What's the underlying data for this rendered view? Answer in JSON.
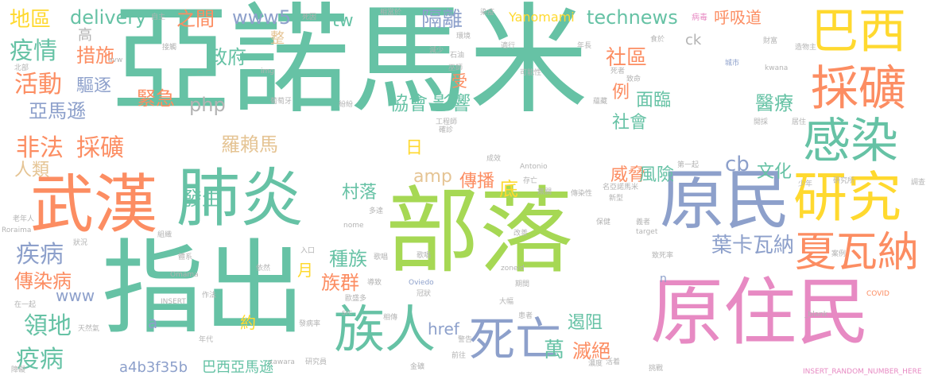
{
  "palette": {
    "teal": "#66c2a5",
    "orange": "#fc8d62",
    "blue": "#8da0cb",
    "pink": "#e78ac3",
    "lime": "#a6d854",
    "yellow": "#ffd92f",
    "tan": "#e5c494",
    "gray": "#b3b3b3"
  },
  "words": [
    {
      "text": "亞諾馬米",
      "color": "teal",
      "weight": 100
    },
    {
      "text": "部落",
      "color": "lime",
      "weight": 70
    },
    {
      "text": "指出",
      "color": "teal",
      "weight": 68
    },
    {
      "text": "原住民",
      "color": "pink",
      "weight": 52
    },
    {
      "text": "武漢",
      "color": "orange",
      "weight": 44
    },
    {
      "text": "肺炎",
      "color": "teal",
      "weight": 44
    },
    {
      "text": "原民",
      "color": "blue",
      "weight": 42
    },
    {
      "text": "研究",
      "color": "yellow",
      "weight": 36
    },
    {
      "text": "族人",
      "color": "teal",
      "weight": 34
    },
    {
      "text": "死亡",
      "color": "blue",
      "weight": 34
    },
    {
      "text": "巴西",
      "color": "yellow",
      "weight": 32
    },
    {
      "text": "採礦",
      "color": "orange",
      "weight": 32
    },
    {
      "text": "感染",
      "color": "teal",
      "weight": 32
    },
    {
      "text": "夏瓦納",
      "color": "orange",
      "weight": 28
    },
    {
      "text": "葉卡瓦納",
      "color": "blue",
      "weight": 18
    },
    {
      "text": "地區",
      "color": "yellow",
      "weight": 16
    },
    {
      "text": "delivery",
      "color": "teal",
      "weight": 16
    },
    {
      "text": "之間",
      "color": "orange",
      "weight": 16
    },
    {
      "text": "www5",
      "color": "blue",
      "weight": 16
    },
    {
      "text": "隔離",
      "color": "blue",
      "weight": 16
    },
    {
      "text": "technews",
      "color": "teal",
      "weight": 16
    },
    {
      "text": "呼吸道",
      "color": "orange",
      "weight": 14
    },
    {
      "text": "tw",
      "color": "teal",
      "weight": 14
    },
    {
      "text": "疫情",
      "color": "teal",
      "weight": 18
    },
    {
      "text": "措施",
      "color": "orange",
      "weight": 16
    },
    {
      "text": "政府",
      "color": "teal",
      "weight": 16
    },
    {
      "text": "社區",
      "color": "orange",
      "weight": 16
    },
    {
      "text": "活動",
      "color": "orange",
      "weight": 18
    },
    {
      "text": "驅逐",
      "color": "blue",
      "weight": 14
    },
    {
      "text": "亞馬遜",
      "color": "blue",
      "weight": 16
    },
    {
      "text": "緊急",
      "color": "orange",
      "weight": 16
    },
    {
      "text": "php",
      "color": "gray",
      "weight": 16
    },
    {
      "text": "協會",
      "color": "teal",
      "weight": 16
    },
    {
      "text": "影響",
      "color": "teal",
      "weight": 16
    },
    {
      "text": "例",
      "color": "orange",
      "weight": 14
    },
    {
      "text": "面臨",
      "color": "teal",
      "weight": 14
    },
    {
      "text": "醫療",
      "color": "teal",
      "weight": 16
    },
    {
      "text": "受",
      "color": "orange",
      "weight": 14
    },
    {
      "text": "社會",
      "color": "teal",
      "weight": 14
    },
    {
      "text": "非法",
      "color": "orange",
      "weight": 18
    },
    {
      "text": "採礦",
      "color": "orange",
      "weight": 18
    },
    {
      "text": "羅賴馬",
      "color": "tan",
      "weight": 16
    },
    {
      "text": "日",
      "color": "yellow",
      "weight": 14
    },
    {
      "text": "人類",
      "color": "tan",
      "weight": 14
    },
    {
      "text": "cb",
      "color": "blue",
      "weight": 16
    },
    {
      "text": "文化",
      "color": "teal",
      "weight": 14
    },
    {
      "text": "威脅",
      "color": "orange",
      "weight": 14
    },
    {
      "text": "風險",
      "color": "teal",
      "weight": 16
    },
    {
      "text": "amp",
      "color": "tan",
      "weight": 16
    },
    {
      "text": "傳播",
      "color": "orange",
      "weight": 16
    },
    {
      "text": "底",
      "color": "yellow",
      "weight": 16
    },
    {
      "text": "發生",
      "color": "teal",
      "weight": 16
    },
    {
      "text": "村落",
      "color": "teal",
      "weight": 16
    },
    {
      "text": "疾病",
      "color": "blue",
      "weight": 18
    },
    {
      "text": "種族",
      "color": "teal",
      "weight": 16
    },
    {
      "text": "族群",
      "color": "orange",
      "weight": 16
    },
    {
      "text": "傳染病",
      "color": "orange",
      "weight": 16
    },
    {
      "text": "月",
      "color": "yellow",
      "weight": 14
    },
    {
      "text": "www",
      "color": "blue",
      "weight": 16
    },
    {
      "text": "領地",
      "color": "teal",
      "weight": 18
    },
    {
      "text": "約",
      "color": "yellow",
      "weight": 14
    },
    {
      "text": "a",
      "color": "blue",
      "weight": 14
    },
    {
      "text": "遏阻",
      "color": "teal",
      "weight": 16
    },
    {
      "text": "萬",
      "color": "teal",
      "weight": 16
    },
    {
      "text": "滅絕",
      "color": "orange",
      "weight": 16
    },
    {
      "text": "href",
      "color": "blue",
      "weight": 14
    },
    {
      "text": "疫病",
      "color": "teal",
      "weight": 18
    },
    {
      "text": "a4b3f35b",
      "color": "blue",
      "weight": 14
    },
    {
      "text": "巴西亞馬遜",
      "color": "teal",
      "weight": 14
    },
    {
      "text": "Yanomami",
      "color": "yellow",
      "weight": 12
    },
    {
      "text": "高",
      "color": "gray",
      "weight": 14
    },
    {
      "text": "ck",
      "color": "gray",
      "weight": 14
    },
    {
      "text": "n",
      "color": "blue",
      "weight": 12
    },
    {
      "text": "整",
      "color": "tan",
      "weight": 14
    },
    {
      "text": "INSERT_RANDOM_NUMBER_HERE",
      "color": "pink",
      "weight": 10
    },
    {
      "text": "病毒",
      "color": "pink",
      "weight": 8
    },
    {
      "text": "財富",
      "color": "gray",
      "weight": 8
    },
    {
      "text": "造物主",
      "color": "gray",
      "weight": 8
    },
    {
      "text": "城市",
      "color": "blue",
      "weight": 8
    },
    {
      "text": "kwana",
      "color": "gray",
      "weight": 8
    },
    {
      "text": "死者",
      "color": "gray",
      "weight": 8
    },
    {
      "text": "致命",
      "color": "gray",
      "weight": 8
    },
    {
      "text": "食於",
      "color": "gray",
      "weight": 8
    },
    {
      "text": "年長",
      "color": "gray",
      "weight": 8
    },
    {
      "text": "巫師",
      "color": "gray",
      "weight": 8
    },
    {
      "text": "石油",
      "color": "gray",
      "weight": 8
    },
    {
      "text": "可能性",
      "color": "gray",
      "weight": 8
    },
    {
      "text": "蘊藏",
      "color": "gray",
      "weight": 8
    },
    {
      "text": "開採",
      "color": "gray",
      "weight": 8
    },
    {
      "text": "居住",
      "color": "gray",
      "weight": 8
    },
    {
      "text": "工程師",
      "color": "gray",
      "weight": 8
    },
    {
      "text": "確診",
      "color": "gray",
      "weight": 8
    },
    {
      "text": "成效",
      "color": "gray",
      "weight": 8
    },
    {
      "text": "Antonio",
      "color": "gray",
      "weight": 8
    },
    {
      "text": "第一起",
      "color": "gray",
      "weight": 8
    },
    {
      "text": "少年",
      "color": "gray",
      "weight": 8
    },
    {
      "text": "研究所",
      "color": "gray",
      "weight": 8
    },
    {
      "text": "調查",
      "color": "gray",
      "weight": 8
    },
    {
      "text": "存亡",
      "color": "gray",
      "weight": 8
    },
    {
      "text": "無關",
      "color": "gray",
      "weight": 8
    },
    {
      "text": "傳染性",
      "color": "gray",
      "weight": 8
    },
    {
      "text": "名亞諾馬米",
      "color": "gray",
      "weight": 8
    },
    {
      "text": "新型",
      "color": "gray",
      "weight": 8
    },
    {
      "text": "保健",
      "color": "gray",
      "weight": 8
    },
    {
      "text": "義者",
      "color": "gray",
      "weight": 8
    },
    {
      "text": "target",
      "color": "gray",
      "weight": 8
    },
    {
      "text": "Roraima",
      "color": "gray",
      "weight": 8
    },
    {
      "text": "老年人",
      "color": "gray",
      "weight": 8
    },
    {
      "text": "組織",
      "color": "gray",
      "weight": 8
    },
    {
      "text": "nome",
      "color": "gray",
      "weight": 8
    },
    {
      "text": "改善",
      "color": "gray",
      "weight": 8
    },
    {
      "text": "zoneid",
      "color": "gray",
      "weight": 8
    },
    {
      "text": "Oviedo",
      "color": "blue",
      "weight": 8
    },
    {
      "text": "冠狀",
      "color": "gray",
      "weight": 8
    },
    {
      "text": "歌唱",
      "color": "gray",
      "weight": 8
    },
    {
      "text": "致死率",
      "color": "gray",
      "weight": 8
    },
    {
      "text": "案例",
      "color": "gray",
      "weight": 8
    },
    {
      "text": "COVID",
      "color": "orange",
      "weight": 8
    },
    {
      "text": "_blank",
      "color": "gray",
      "weight": 8
    },
    {
      "text": "Omama",
      "color": "gray",
      "weight": 8
    },
    {
      "text": "INSERT",
      "color": "gray",
      "weight": 8
    },
    {
      "text": "src",
      "color": "gray",
      "weight": 8
    },
    {
      "text": "xawara",
      "color": "gray",
      "weight": 8
    },
    {
      "text": "研究員",
      "color": "gray",
      "weight": 8
    },
    {
      "text": "金礦",
      "color": "gray",
      "weight": 8
    },
    {
      "text": "期間",
      "color": "gray",
      "weight": 8
    },
    {
      "text": "患者",
      "color": "gray",
      "weight": 8
    },
    {
      "text": "大幅",
      "color": "gray",
      "weight": 8
    },
    {
      "text": "警告",
      "color": "gray",
      "weight": 8
    },
    {
      "text": "濃度",
      "color": "gray",
      "weight": 8
    },
    {
      "text": "挑戰",
      "color": "gray",
      "weight": 8
    },
    {
      "text": "活着",
      "color": "gray",
      "weight": 8
    },
    {
      "text": "年代",
      "color": "gray",
      "weight": 8
    },
    {
      "text": "作法",
      "color": "gray",
      "weight": 8
    },
    {
      "text": "天然氣",
      "color": "gray",
      "weight": 8
    },
    {
      "text": "在一起",
      "color": "gray",
      "weight": 8
    },
    {
      "text": "狀況",
      "color": "gray",
      "weight": 8
    },
    {
      "text": "體系",
      "color": "gray",
      "weight": 8
    },
    {
      "text": "依然",
      "color": "gray",
      "weight": 8
    },
    {
      "text": "入口",
      "color": "gray",
      "weight": 8
    },
    {
      "text": "發病率",
      "color": "gray",
      "weight": 8
    },
    {
      "text": "歌唱",
      "color": "gray",
      "weight": 8
    },
    {
      "text": "相傳",
      "color": "gray",
      "weight": 8
    },
    {
      "text": "歐盛多",
      "color": "gray",
      "weight": 8
    },
    {
      "text": "img",
      "color": "gray",
      "weight": 8
    },
    {
      "text": "avw",
      "color": "gray",
      "weight": 8
    },
    {
      "text": "北部",
      "color": "gray",
      "weight": 8
    },
    {
      "text": "葡萄牙",
      "color": "gray",
      "weight": 8
    },
    {
      "text": "接觸",
      "color": "gray",
      "weight": 8
    },
    {
      "text": "自主",
      "color": "gray",
      "weight": 8
    },
    {
      "text": "死因",
      "color": "gray",
      "weight": 8
    },
    {
      "text": "相當於",
      "color": "gray",
      "weight": 8
    },
    {
      "text": "環境",
      "color": "gray",
      "weight": 8
    },
    {
      "text": "染疫",
      "color": "gray",
      "weight": 8
    },
    {
      "text": "適行",
      "color": "gray",
      "weight": 8
    },
    {
      "text": "減少",
      "color": "gray",
      "weight": 8
    },
    {
      "text": "導致",
      "color": "gray",
      "weight": 8
    },
    {
      "text": "多達",
      "color": "gray",
      "weight": 8
    },
    {
      "text": "前往",
      "color": "gray",
      "weight": 8
    },
    {
      "text": "紛紛",
      "color": "gray",
      "weight": 8
    },
    {
      "text": "障礙",
      "color": "gray",
      "weight": 8
    }
  ]
}
